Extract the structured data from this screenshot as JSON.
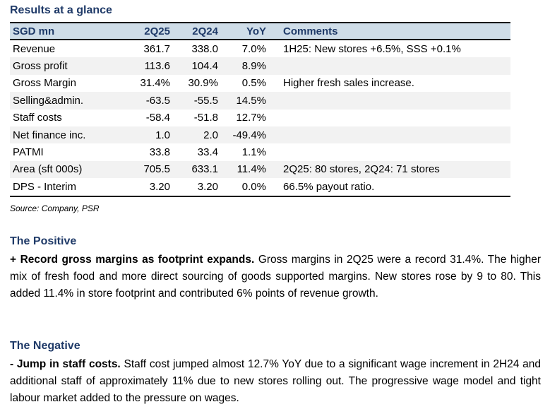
{
  "title": "Results at a glance",
  "table": {
    "headers": [
      "SGD mn",
      "2Q25",
      "2Q24",
      "YoY",
      "Comments"
    ],
    "rows": [
      [
        "Revenue",
        "361.7",
        "338.0",
        "7.0%",
        "1H25: New stores +6.5%, SSS +0.1%"
      ],
      [
        "Gross profit",
        "113.6",
        "104.4",
        "8.9%",
        ""
      ],
      [
        "Gross Margin",
        "31.4%",
        "30.9%",
        "0.5%",
        "Higher fresh sales increase."
      ],
      [
        "Selling&admin.",
        "-63.5",
        "-55.5",
        "14.5%",
        ""
      ],
      [
        "Staff costs",
        "-58.4",
        "-51.8",
        "12.7%",
        ""
      ],
      [
        "Net finance inc.",
        "1.0",
        "2.0",
        "-49.4%",
        ""
      ],
      [
        "PATMI",
        "33.8",
        "33.4",
        "1.1%",
        ""
      ],
      [
        "Area (sft 000s)",
        "705.5",
        "633.1",
        "11.4%",
        "2Q25: 80 stores, 2Q24: 71 stores"
      ],
      [
        "DPS - Interim",
        "3.20",
        "3.20",
        "0.0%",
        "66.5% payout ratio."
      ]
    ]
  },
  "source": "Source: Company, PSR",
  "positive": {
    "heading": "The Positive",
    "lead": "+ Record gross margins as footprint expands.",
    "body": " Gross margins in 2Q25 were a record 31.4%. The higher mix of fresh food and more direct sourcing of goods supported margins. New stores rose by 9 to 80. This added 11.4% in store footprint and contributed 6% points of revenue growth."
  },
  "negative": {
    "heading": "The Negative",
    "lead": "- Jump in staff costs.",
    "body": " Staff cost jumped almost 12.7% YoY due to a significant wage increment in 2H24 and additional staff of approximately 11% due to new stores rolling out. The progressive wage model and tight labour market added to the pressure on wages."
  }
}
